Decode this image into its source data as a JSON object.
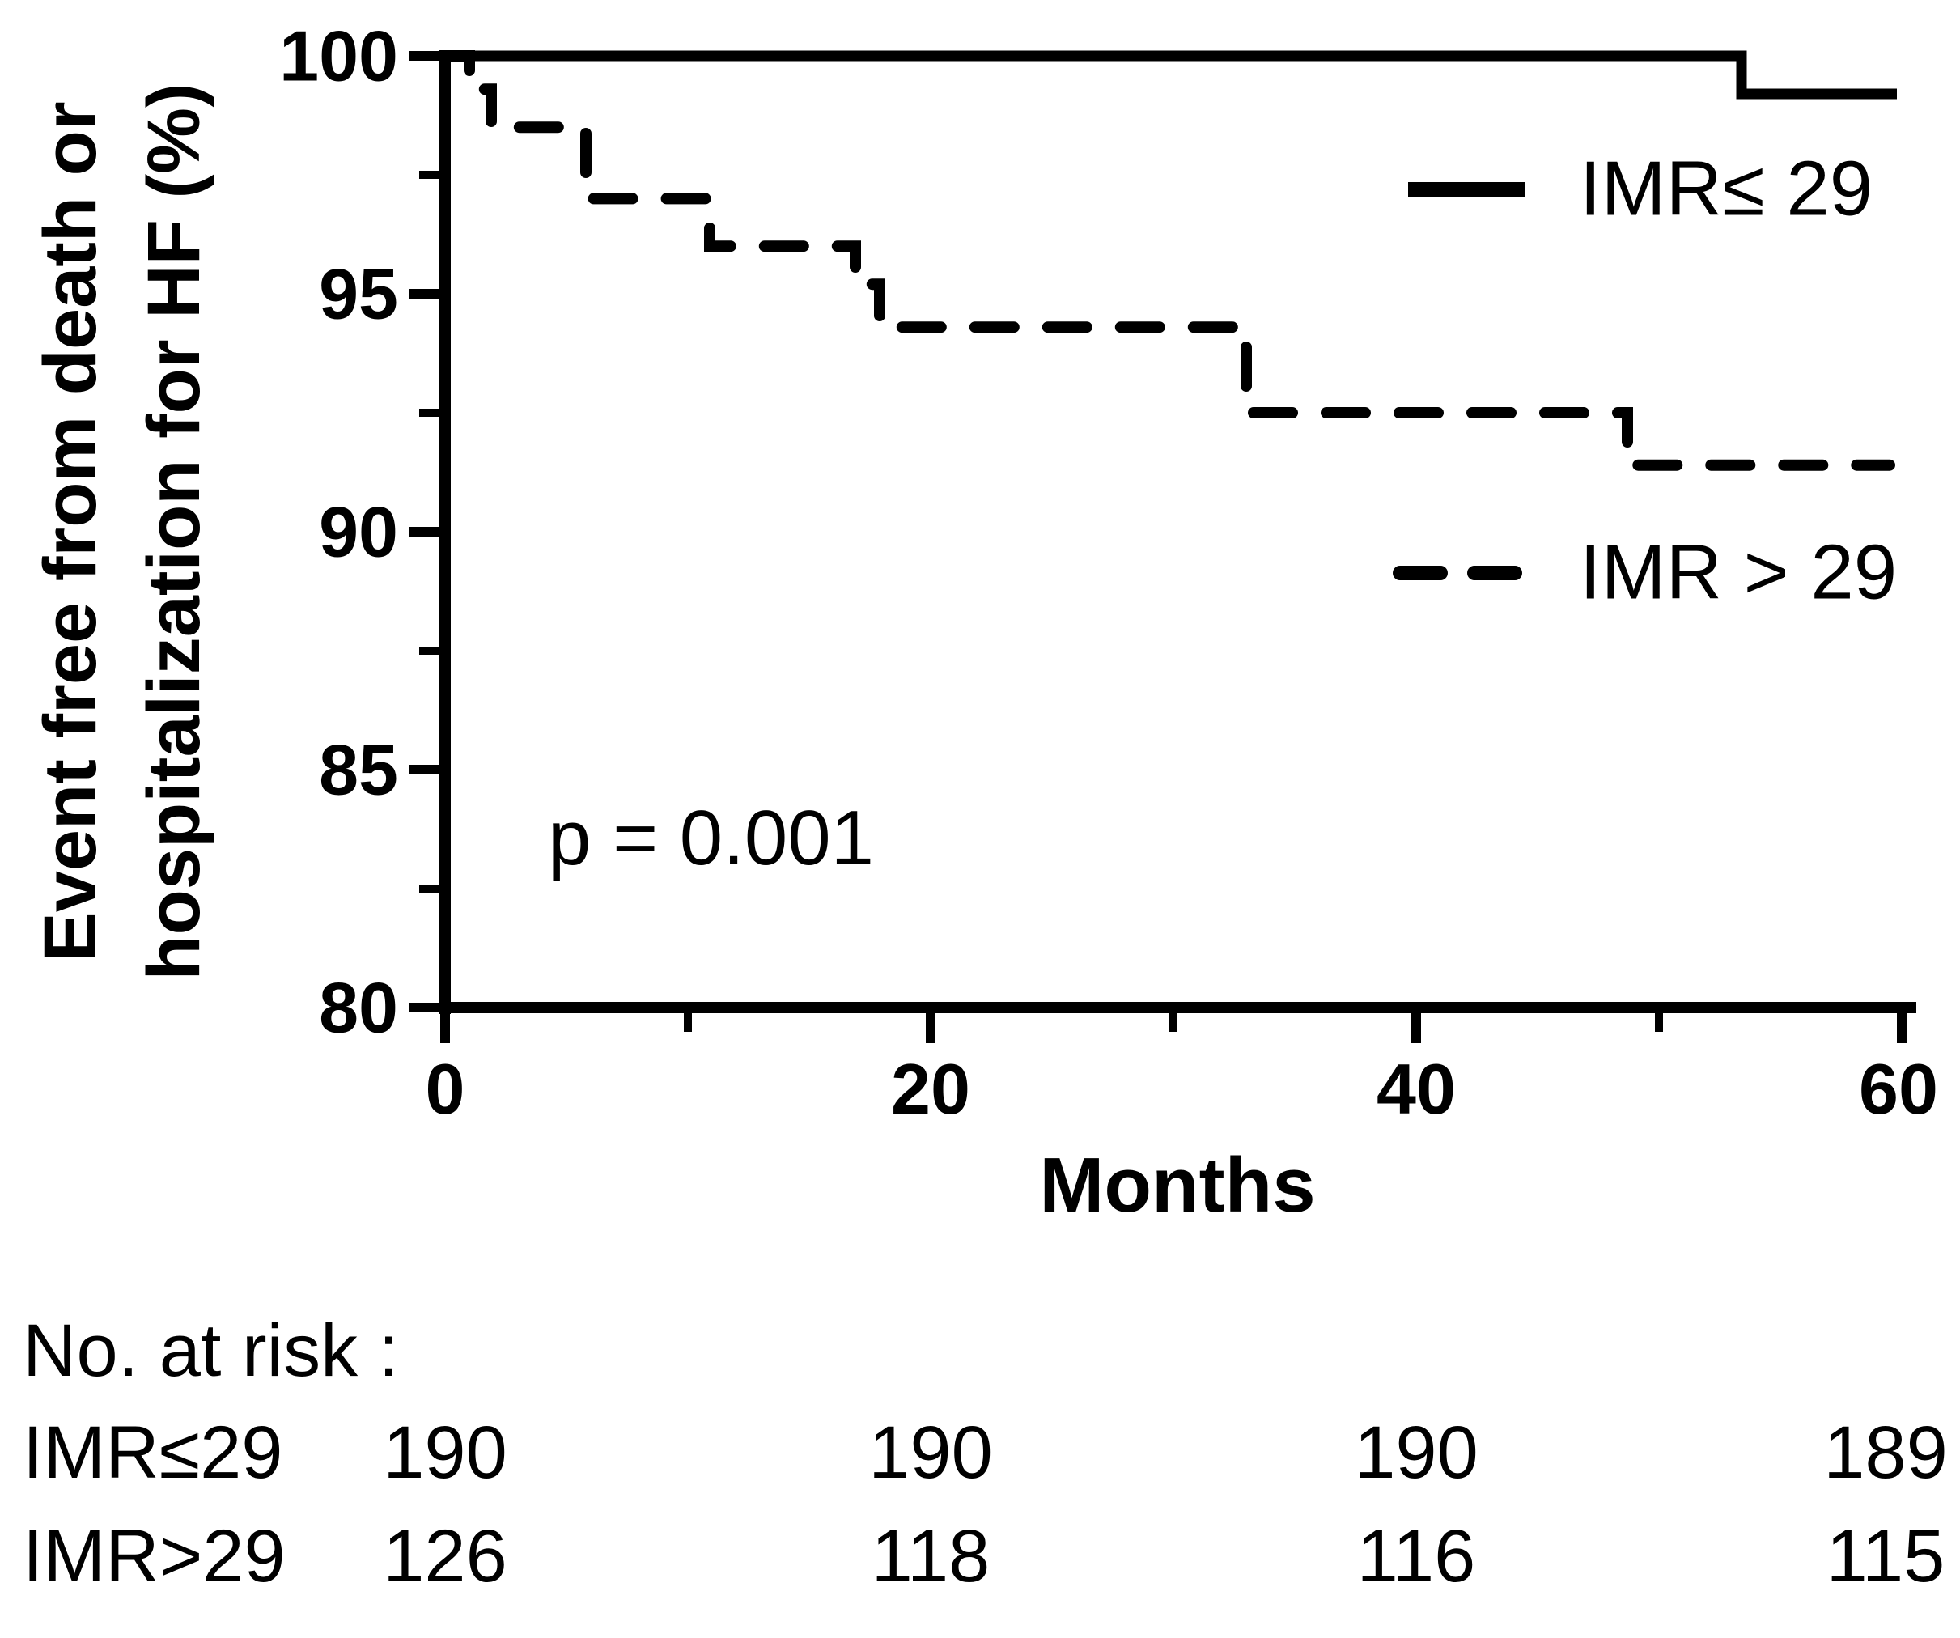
{
  "figure": {
    "background": "#ffffff",
    "ink_color": "#000000"
  },
  "chart_data": {
    "type": "line",
    "subtype": "kaplan-meier-step-curves",
    "title": "",
    "xlabel": "Months",
    "ylabel_lines": [
      "Event free from death or",
      "hospitalization for HF (%)"
    ],
    "xlim": [
      0,
      60
    ],
    "ylim": [
      80,
      100
    ],
    "x_major_ticks": [
      0,
      20,
      40,
      60
    ],
    "x_minor_ticks": [
      10,
      30,
      50
    ],
    "y_major_ticks": [
      100,
      95,
      90,
      85,
      80
    ],
    "y_minor_ticks": [
      97.5,
      92.5,
      87.5,
      82.5
    ],
    "grid": false,
    "legend_position": "inside-right",
    "annotation": {
      "text": "p = 0.001"
    },
    "series": [
      {
        "name": "IMR≤ 29",
        "line_style": "solid",
        "color": "#000000",
        "points": [
          [
            0,
            100
          ],
          [
            53.4,
            100
          ],
          [
            53.4,
            99.2
          ],
          [
            59.8,
            99.2
          ]
        ]
      },
      {
        "name": "IMR > 29",
        "line_style": "dashed",
        "color": "#000000",
        "points": [
          [
            0,
            100
          ],
          [
            1.0,
            100
          ],
          [
            1.0,
            99.3
          ],
          [
            1.9,
            99.3
          ],
          [
            1.9,
            98.5
          ],
          [
            5.8,
            98.5
          ],
          [
            5.8,
            97.0
          ],
          [
            10.9,
            97.0
          ],
          [
            10.9,
            96.0
          ],
          [
            16.9,
            96.0
          ],
          [
            16.9,
            95.2
          ],
          [
            17.9,
            95.2
          ],
          [
            17.9,
            94.3
          ],
          [
            33.0,
            94.3
          ],
          [
            33.0,
            92.5
          ],
          [
            48.7,
            92.5
          ],
          [
            48.7,
            91.4
          ],
          [
            59.5,
            91.4
          ]
        ]
      }
    ],
    "risk_table": {
      "title": "No. at risk :",
      "time_points": [
        0,
        20,
        40,
        60
      ],
      "rows": [
        {
          "label": "IMR≤29",
          "values": [
            "190",
            "190",
            "190",
            "189"
          ]
        },
        {
          "label": "IMR>29",
          "values": [
            "126",
            "118",
            "116",
            "115"
          ]
        }
      ]
    }
  }
}
